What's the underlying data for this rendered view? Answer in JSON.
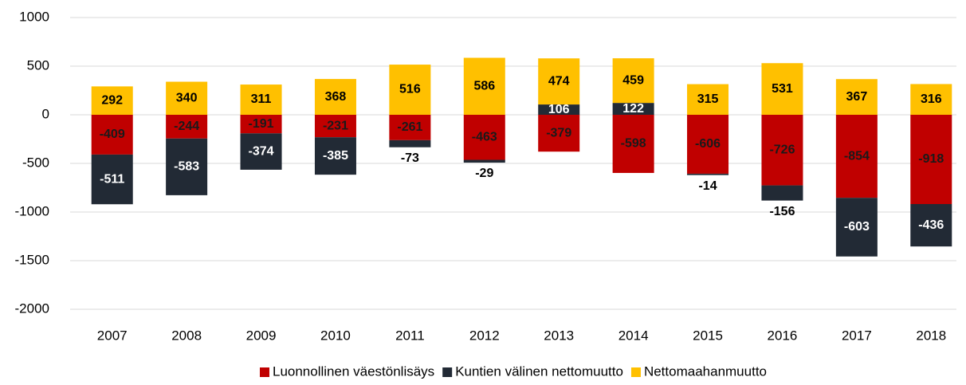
{
  "chart_data": {
    "type": "stacked_bar",
    "categories": [
      "2007",
      "2008",
      "2009",
      "2010",
      "2011",
      "2012",
      "2013",
      "2014",
      "2015",
      "2016",
      "2017",
      "2018"
    ],
    "series": [
      {
        "name": "Luonnollinen väestönlisäys",
        "color": "#c00000",
        "values": [
          -409,
          -244,
          -191,
          -231,
          -261,
          -463,
          -379,
          -598,
          -606,
          -726,
          -854,
          -918
        ]
      },
      {
        "name": "Kuntien välinen nettomuutto",
        "color": "#222a35",
        "values": [
          -511,
          -583,
          -374,
          -385,
          -73,
          -29,
          106,
          122,
          -14,
          -156,
          -603,
          -436
        ]
      },
      {
        "name": "Nettomaahanmuutto",
        "color": "#ffc000",
        "values": [
          292,
          340,
          311,
          368,
          516,
          586,
          474,
          459,
          315,
          531,
          367,
          316
        ]
      }
    ],
    "ylim": [
      -2000,
      1000
    ],
    "yticks": [
      -2000,
      -1500,
      -1000,
      -500,
      0,
      500,
      1000
    ],
    "grid": true,
    "legend": "bottom"
  }
}
